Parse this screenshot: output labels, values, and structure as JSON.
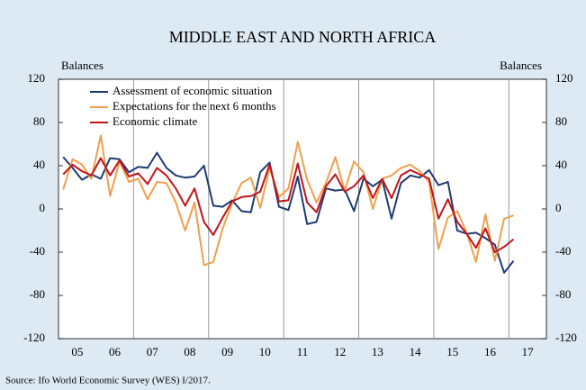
{
  "chart_data": {
    "type": "line",
    "title": "MIDDLE EAST AND NORTH AFRICA",
    "y_label_left": "Balances",
    "y_label_right": "Balances",
    "source": "Source: Ifo World Economic Survey (WES) I/2017.",
    "x": [
      2005.125,
      2005.375,
      2005.625,
      2005.875,
      2006.125,
      2006.375,
      2006.625,
      2006.875,
      2007.125,
      2007.375,
      2007.625,
      2007.875,
      2008.125,
      2008.375,
      2008.625,
      2008.875,
      2009.125,
      2009.375,
      2009.625,
      2009.875,
      2010.125,
      2010.375,
      2010.625,
      2010.875,
      2011.125,
      2011.375,
      2011.625,
      2011.875,
      2012.125,
      2012.375,
      2012.625,
      2012.875,
      2013.125,
      2013.375,
      2013.625,
      2013.875,
      2014.125,
      2014.375,
      2014.625,
      2014.875,
      2015.125,
      2015.375,
      2015.625,
      2015.875,
      2016.125,
      2016.375,
      2016.625,
      2016.875,
      2017.125
    ],
    "series": [
      {
        "name": "Assessment of economic situation",
        "color": "#1f3b73",
        "values": [
          48,
          38,
          27,
          32,
          28,
          47,
          46,
          34,
          39,
          38,
          52,
          38,
          31,
          29,
          30,
          40,
          3,
          2,
          8,
          -2,
          -3,
          34,
          43,
          2,
          -1,
          30,
          -14,
          -12,
          19,
          17,
          18,
          -2,
          28,
          21,
          27,
          -9,
          24,
          31,
          29,
          36,
          22,
          25,
          -20,
          -23,
          -22,
          -27,
          -33,
          -59,
          -48
        ]
      },
      {
        "name": "Expectations for the next 6 months",
        "color": "#f0a04b",
        "values": [
          18,
          46,
          41,
          28,
          68,
          12,
          44,
          25,
          28,
          9,
          25,
          24,
          6,
          -20,
          6,
          -52,
          -49,
          -18,
          5,
          24,
          29,
          1,
          38,
          11,
          19,
          62,
          27,
          6,
          24,
          48,
          17,
          44,
          34,
          0,
          28,
          31,
          38,
          41,
          35,
          25,
          -37,
          -8,
          -2,
          -22,
          -49,
          -5,
          -48,
          -9,
          -6
        ]
      },
      {
        "name": "Economic climate",
        "color": "#c0141a",
        "values": [
          32,
          41,
          35,
          31,
          47,
          31,
          45,
          30,
          33,
          23,
          38,
          31,
          19,
          3,
          19,
          -12,
          -24,
          -8,
          7,
          11,
          12,
          16,
          41,
          7,
          8,
          42,
          6,
          -3,
          21,
          32,
          16,
          21,
          31,
          10,
          28,
          10,
          31,
          36,
          32,
          28,
          -9,
          9,
          -12,
          -23,
          -36,
          -18,
          -40,
          -35,
          -28
        ]
      }
    ],
    "xlim": [
      2005,
      2018
    ],
    "xticks": [
      {
        "value": 2005.5,
        "label": "05"
      },
      {
        "value": 2006.5,
        "label": "06"
      },
      {
        "value": 2007.5,
        "label": "07"
      },
      {
        "value": 2008.5,
        "label": "08"
      },
      {
        "value": 2009.5,
        "label": "09"
      },
      {
        "value": 2010.5,
        "label": "10"
      },
      {
        "value": 2011.5,
        "label": "11"
      },
      {
        "value": 2012.5,
        "label": "12"
      },
      {
        "value": 2013.5,
        "label": "13"
      },
      {
        "value": 2014.5,
        "label": "14"
      },
      {
        "value": 2015.5,
        "label": "15"
      },
      {
        "value": 2016.5,
        "label": "16"
      },
      {
        "value": 2017.5,
        "label": "17"
      }
    ],
    "vlines": [
      2007,
      2009,
      2011,
      2013,
      2015,
      2017
    ],
    "ylim": [
      -120,
      120
    ],
    "yticks": [
      -120,
      -80,
      -40,
      0,
      40,
      80,
      120
    ],
    "legend": "upper left"
  }
}
